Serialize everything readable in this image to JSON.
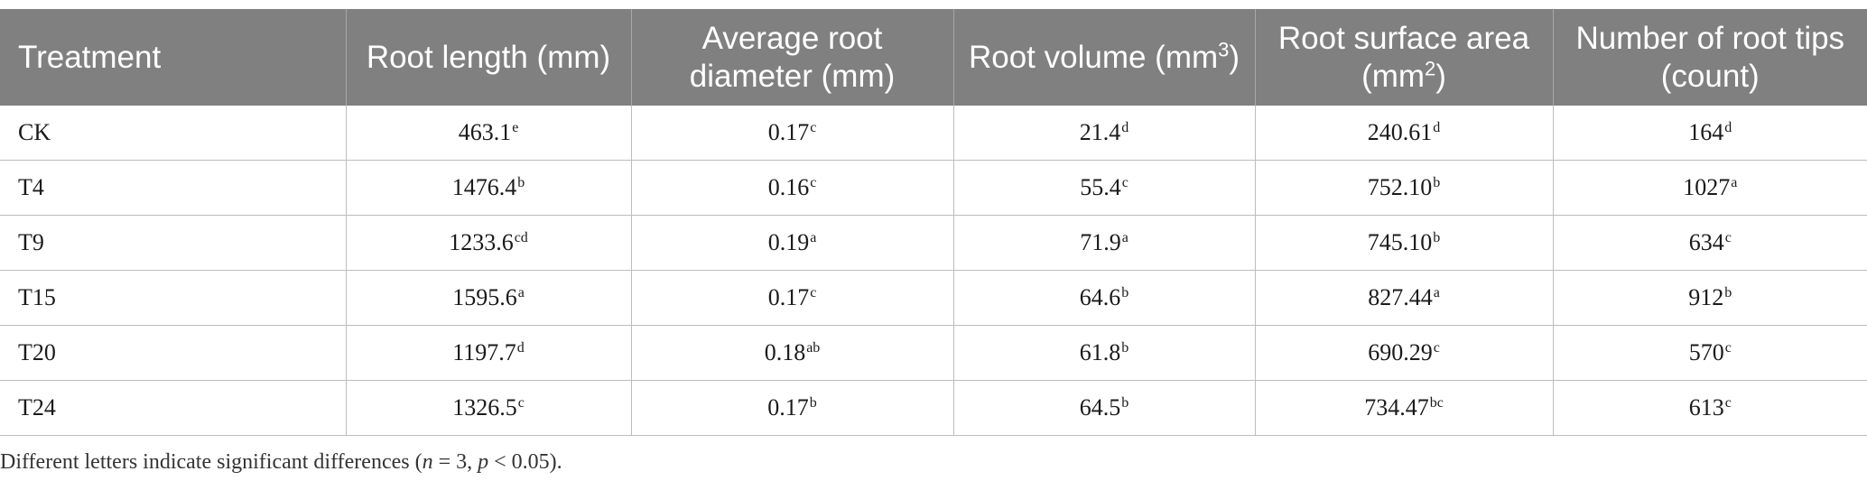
{
  "table": {
    "headers": [
      {
        "text": "Treatment",
        "sup": "",
        "tail": ""
      },
      {
        "text": "Root length (mm)",
        "sup": "",
        "tail": ""
      },
      {
        "text": "Average root diameter (mm)",
        "sup": "",
        "tail": ""
      },
      {
        "text": "Root volume (mm",
        "sup": "3",
        "tail": ")"
      },
      {
        "text": "Root surface area (mm",
        "sup": "2",
        "tail": ")"
      },
      {
        "text": "Number of root tips (count)",
        "sup": "",
        "tail": ""
      }
    ],
    "rows": [
      {
        "treatment": "CK",
        "cells": [
          {
            "value": "463.1",
            "letter": "e"
          },
          {
            "value": "0.17",
            "letter": "c"
          },
          {
            "value": "21.4",
            "letter": "d"
          },
          {
            "value": "240.61",
            "letter": "d"
          },
          {
            "value": "164",
            "letter": "d"
          }
        ]
      },
      {
        "treatment": "T4",
        "cells": [
          {
            "value": "1476.4",
            "letter": "b"
          },
          {
            "value": "0.16",
            "letter": "c"
          },
          {
            "value": "55.4",
            "letter": "c"
          },
          {
            "value": "752.10",
            "letter": "b"
          },
          {
            "value": "1027",
            "letter": "a"
          }
        ]
      },
      {
        "treatment": "T9",
        "cells": [
          {
            "value": "1233.6",
            "letter": "cd"
          },
          {
            "value": "0.19",
            "letter": "a"
          },
          {
            "value": "71.9",
            "letter": "a"
          },
          {
            "value": "745.10",
            "letter": "b"
          },
          {
            "value": "634",
            "letter": "c"
          }
        ]
      },
      {
        "treatment": "T15",
        "cells": [
          {
            "value": "1595.6",
            "letter": "a"
          },
          {
            "value": "0.17",
            "letter": "c"
          },
          {
            "value": "64.6",
            "letter": "b"
          },
          {
            "value": "827.44",
            "letter": "a"
          },
          {
            "value": "912",
            "letter": "b"
          }
        ]
      },
      {
        "treatment": "T20",
        "cells": [
          {
            "value": "1197.7",
            "letter": "d"
          },
          {
            "value": "0.18",
            "letter": "ab"
          },
          {
            "value": "61.8",
            "letter": "b"
          },
          {
            "value": "690.29",
            "letter": "c"
          },
          {
            "value": "570",
            "letter": "c"
          }
        ]
      },
      {
        "treatment": "T24",
        "cells": [
          {
            "value": "1326.5",
            "letter": "c"
          },
          {
            "value": "0.17",
            "letter": "b"
          },
          {
            "value": "64.5",
            "letter": "b"
          },
          {
            "value": "734.47",
            "letter": "bc"
          },
          {
            "value": "613",
            "letter": "c"
          }
        ]
      }
    ]
  },
  "footnote": {
    "pre": "Different letters indicate significant differences (",
    "n_var": "n",
    "mid": " = 3, ",
    "p_var": "p",
    "post": " < 0.05)."
  },
  "colors": {
    "header_bg": "#808080",
    "header_text": "#ffffff",
    "grid_line": "#bdbdbd",
    "body_text": "#1a1a1a"
  }
}
